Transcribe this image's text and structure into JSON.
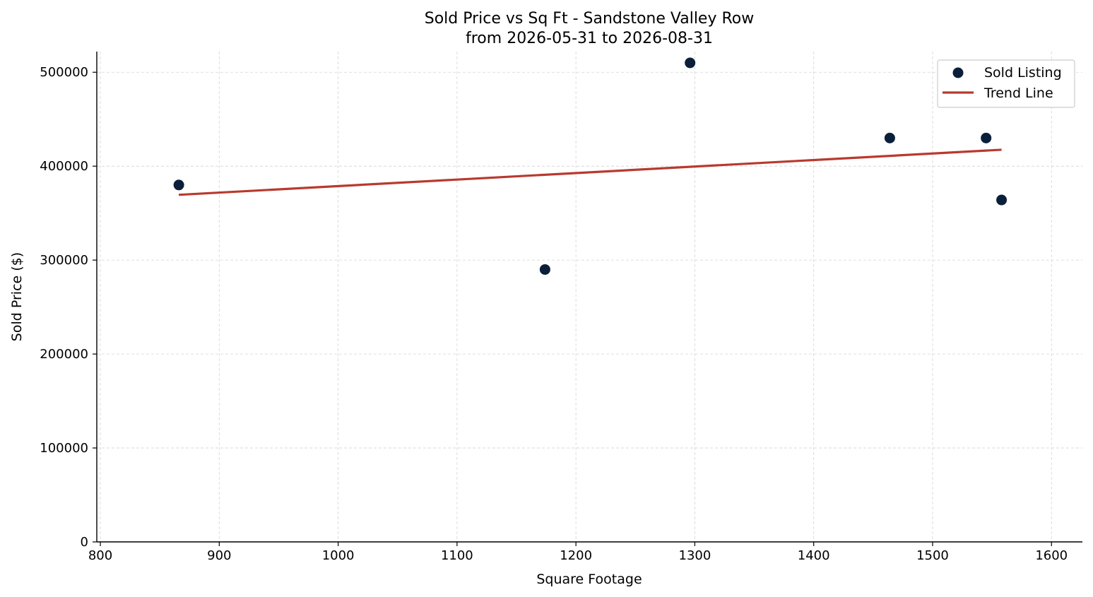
{
  "chart_data": {
    "type": "scatter",
    "title": "Sold Price vs Sq Ft - Sandstone Valley Row",
    "subtitle": "from 2026-05-31 to 2026-08-31",
    "xlabel": "Square Footage",
    "ylabel": "Sold Price ($)",
    "xlim": [
      797,
      1626
    ],
    "ylim": [
      0,
      522000
    ],
    "x_ticks": [
      800,
      900,
      1000,
      1100,
      1200,
      1300,
      1400,
      1500,
      1600
    ],
    "y_ticks": [
      0,
      100000,
      200000,
      300000,
      400000,
      500000
    ],
    "grid": true,
    "legend": {
      "placement": "top-right",
      "entries": [
        {
          "label": "Sold Listing",
          "kind": "marker",
          "color": "#0b1f3a"
        },
        {
          "label": "Trend Line",
          "kind": "line",
          "color": "#b83a2e"
        }
      ]
    },
    "series": [
      {
        "name": "Sold Listing",
        "kind": "scatter",
        "color": "#0b1f3a",
        "points": [
          {
            "x": 866,
            "y": 380000
          },
          {
            "x": 1174,
            "y": 290000
          },
          {
            "x": 1296,
            "y": 510000
          },
          {
            "x": 1464,
            "y": 430000
          },
          {
            "x": 1545,
            "y": 430000
          },
          {
            "x": 1558,
            "y": 364000
          }
        ]
      },
      {
        "name": "Trend Line",
        "kind": "line",
        "color": "#b83a2e",
        "points": [
          {
            "x": 866,
            "y": 369500
          },
          {
            "x": 1558,
            "y": 417500
          }
        ]
      }
    ]
  }
}
